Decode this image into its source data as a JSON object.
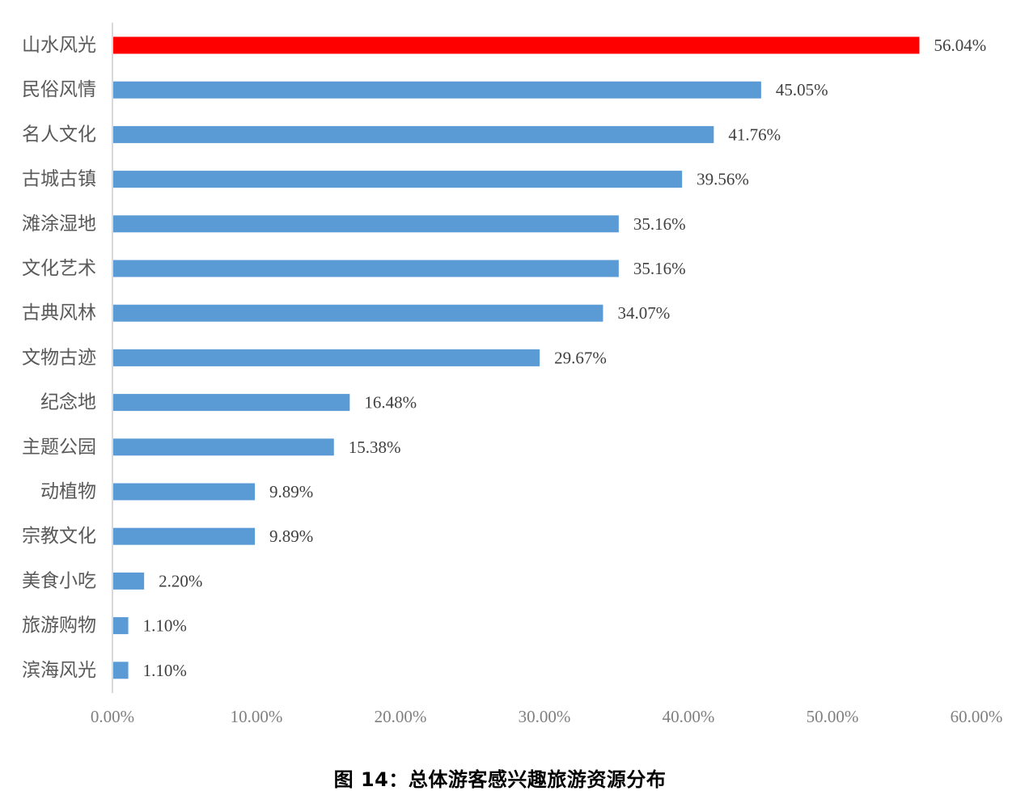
{
  "chart_data": {
    "type": "bar",
    "orientation": "horizontal",
    "categories": [
      "山水风光",
      "民俗风情",
      "名人文化",
      "古城古镇",
      "滩涂湿地",
      "文化艺术",
      "古典风林",
      "文物古迹",
      "纪念地",
      "主题公园",
      "动植物",
      "宗教文化",
      "美食小吃",
      "旅游购物",
      "滨海风光"
    ],
    "values": [
      56.04,
      45.05,
      41.76,
      39.56,
      35.16,
      35.16,
      34.07,
      29.67,
      16.48,
      15.38,
      9.89,
      9.89,
      2.2,
      1.1,
      1.1
    ],
    "value_labels": [
      "56.04%",
      "45.05%",
      "41.76%",
      "39.56%",
      "35.16%",
      "35.16%",
      "34.07%",
      "29.67%",
      "16.48%",
      "15.38%",
      "9.89%",
      "9.89%",
      "2.20%",
      "1.10%",
      "1.10%"
    ],
    "xlim": [
      0,
      60
    ],
    "x_ticks": [
      0,
      10,
      20,
      30,
      40,
      50,
      60
    ],
    "x_tick_labels": [
      "0.00%",
      "10.00%",
      "20.00%",
      "30.00%",
      "40.00%",
      "50.00%",
      "60.00%"
    ],
    "title": "",
    "xlabel": "",
    "ylabel": "",
    "grid": false,
    "legend": "none",
    "colors": {
      "bar": "#5b9bd5",
      "highlight": "#ff0000",
      "axis": "#d9d9d9"
    },
    "highlight_index": 0
  },
  "caption": "图 14：总体游客感兴趣旅游资源分布"
}
